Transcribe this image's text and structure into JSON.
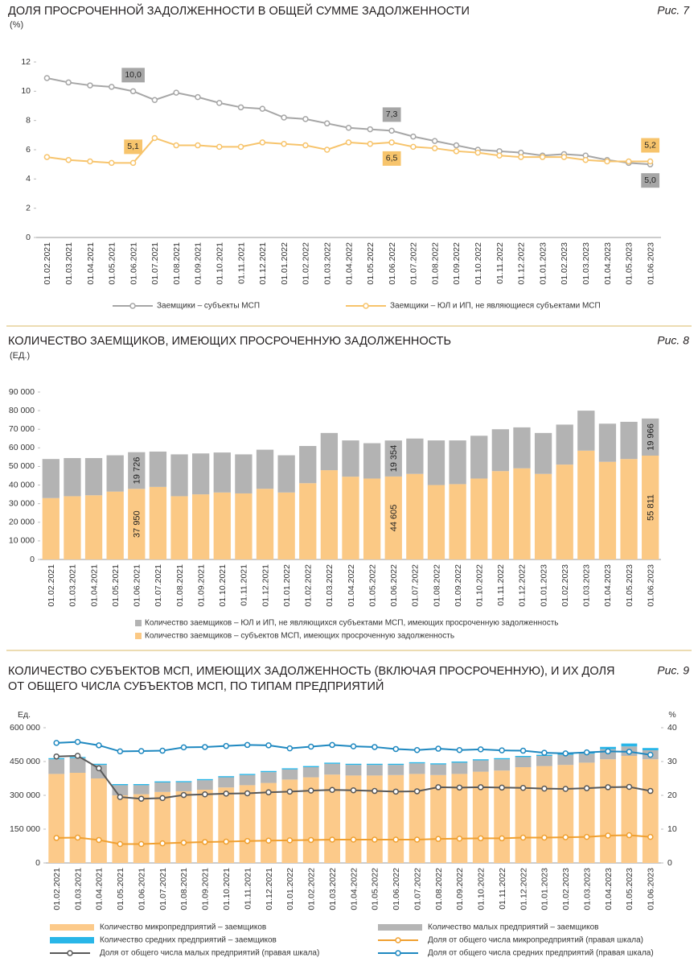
{
  "chart_data": [
    {
      "type": "line",
      "title": "ДОЛЯ ПРОСРОЧЕННОЙ ЗАДОЛЖЕННОСТИ В ОБЩЕЙ СУММЕ ЗАДОЛЖЕННОСТИ",
      "unit": "(%)",
      "figure_label": "Рис. 7",
      "categories": [
        "01.02.2021",
        "01.03.2021",
        "01.04.2021",
        "01.05.2021",
        "01.06.2021",
        "01.07.2021",
        "01.08.2021",
        "01.09.2021",
        "01.10.2021",
        "01.11.2021",
        "01.12.2021",
        "01.01.2022",
        "01.02.2022",
        "01.03.2022",
        "01.04.2022",
        "01.05.2022",
        "01.06.2022",
        "01.07.2022",
        "01.08.2022",
        "01.09.2022",
        "01.10.2022",
        "01.11.2022",
        "01.12.2022",
        "01.01.2023",
        "01.02.2023",
        "01.03.2023",
        "01.04.2023",
        "01.05.2023",
        "01.06.2023"
      ],
      "ylim": [
        0,
        12
      ],
      "yticks": [
        0,
        2,
        4,
        6,
        8,
        10,
        12
      ],
      "grid": false,
      "legend": "bottom",
      "series": [
        {
          "name": "Заемщики – субъекты МСП",
          "color": "#a6a6a6",
          "values": [
            10.9,
            10.6,
            10.4,
            10.3,
            10.0,
            9.4,
            9.9,
            9.6,
            9.2,
            8.9,
            8.8,
            8.2,
            8.1,
            7.8,
            7.5,
            7.4,
            7.3,
            6.9,
            6.6,
            6.3,
            6.0,
            5.9,
            5.8,
            5.6,
            5.7,
            5.6,
            5.3,
            5.1,
            5.0
          ],
          "value_labels": [
            null,
            null,
            null,
            null,
            "10,0",
            null,
            null,
            null,
            null,
            null,
            null,
            null,
            null,
            null,
            null,
            null,
            "7,3",
            null,
            null,
            null,
            null,
            null,
            null,
            null,
            null,
            null,
            null,
            null,
            "5,0"
          ]
        },
        {
          "name": "Заемщики – ЮЛ и ИП, не являющиеся субъектами МСП",
          "color": "#f7c46c",
          "values": [
            5.5,
            5.3,
            5.2,
            5.1,
            5.1,
            6.8,
            6.3,
            6.3,
            6.2,
            6.2,
            6.5,
            6.4,
            6.3,
            6.0,
            6.5,
            6.4,
            6.5,
            6.2,
            6.1,
            5.9,
            5.8,
            5.6,
            5.5,
            5.5,
            5.5,
            5.3,
            5.2,
            5.2,
            5.2
          ],
          "value_labels": [
            null,
            null,
            null,
            null,
            "5,1",
            null,
            null,
            null,
            null,
            null,
            null,
            null,
            null,
            null,
            null,
            null,
            "6,5",
            null,
            null,
            null,
            null,
            null,
            null,
            null,
            null,
            null,
            null,
            null,
            "5,2"
          ]
        }
      ]
    },
    {
      "type": "bar",
      "stacked": true,
      "title": "КОЛИЧЕСТВО ЗАЕМЩИКОВ, ИМЕЮЩИХ ПРОСРОЧЕННУЮ ЗАДОЛЖЕННОСТЬ",
      "unit": "(ЕД.)",
      "figure_label": "Рис. 8",
      "categories": [
        "01.02.2021",
        "01.03.2021",
        "01.04.2021",
        "01.05.2021",
        "01.06.2021",
        "01.07.2021",
        "01.08.2021",
        "01.09.2021",
        "01.10.2021",
        "01.11.2021",
        "01.12.2021",
        "01.01.2022",
        "01.02.2022",
        "01.03.2022",
        "01.04.2022",
        "01.05.2022",
        "01.06.2022",
        "01.07.2022",
        "01.08.2022",
        "01.09.2022",
        "01.10.2022",
        "01.11.2022",
        "01.12.2022",
        "01.01.2023",
        "01.02.2023",
        "01.03.2023",
        "01.04.2023",
        "01.05.2023",
        "01.06.2023"
      ],
      "ylim": [
        0,
        90000
      ],
      "yticks": [
        0,
        {
          "value": 10000,
          "label": "10 000"
        },
        {
          "value": 20000,
          "label": "20 000"
        },
        {
          "value": 30000,
          "label": "30 000"
        },
        {
          "value": 40000,
          "label": "40 000"
        },
        {
          "value": 50000,
          "label": "50 000"
        },
        {
          "value": 60000,
          "label": "60 000"
        },
        {
          "value": 70000,
          "label": "70 000"
        },
        {
          "value": 80000,
          "label": "80 000"
        },
        {
          "value": 90000,
          "label": "90 000"
        }
      ],
      "grid": false,
      "legend": "bottom",
      "series": [
        {
          "name": "Количество заемщиков – ЮЛ и ИП, не являющихся субъектами МСП, имеющих просроченную задолженность",
          "color": "#b3b3b3",
          "values": [
            21000,
            20500,
            20000,
            19500,
            19726,
            19000,
            22500,
            22000,
            21500,
            21000,
            21000,
            20000,
            20000,
            20000,
            19500,
            19000,
            19354,
            19000,
            24000,
            23500,
            23000,
            22500,
            22000,
            22000,
            21500,
            21500,
            20500,
            20000,
            19966
          ],
          "value_labels": [
            null,
            null,
            null,
            null,
            "19 726",
            null,
            null,
            null,
            null,
            null,
            null,
            null,
            null,
            null,
            null,
            null,
            "19 354",
            null,
            null,
            null,
            null,
            null,
            null,
            null,
            null,
            null,
            null,
            null,
            "19 966"
          ]
        },
        {
          "name": "Количество заемщиков – субъектов МСП, имеющих просроченную задолженность",
          "color": "#fbc985",
          "values": [
            33000,
            34000,
            34500,
            36500,
            37950,
            39000,
            34000,
            35000,
            36000,
            35500,
            38000,
            36000,
            41000,
            48000,
            44500,
            43500,
            44605,
            46000,
            40000,
            40500,
            43500,
            47500,
            49000,
            46000,
            51000,
            58500,
            52500,
            54000,
            55811
          ],
          "value_labels": [
            null,
            null,
            null,
            null,
            "37 950",
            null,
            null,
            null,
            null,
            null,
            null,
            null,
            null,
            null,
            null,
            null,
            "44 605",
            null,
            null,
            null,
            null,
            null,
            null,
            null,
            null,
            null,
            null,
            null,
            "55 811"
          ]
        }
      ]
    },
    {
      "type": "combo",
      "stacked": true,
      "title": [
        "КОЛИЧЕСТВО СУБЪЕКТОВ МСП, ИМЕЮЩИХ ЗАДОЛЖЕННОСТЬ (ВКЛЮЧАЯ ПРОСРОЧЕННУЮ), И ИХ ДОЛЯ",
        "ОТ ОБЩЕГО ЧИСЛА СУБЪЕКТОВ МСП, ПО ТИПАМ ПРЕДПРИЯТИЙ"
      ],
      "figure_label": "Рис. 9",
      "y_label": "Ед.",
      "y2_label": "%",
      "categories": [
        "01.02.2021",
        "01.03.2021",
        "01.04.2021",
        "01.05.2021",
        "01.06.2021",
        "01.07.2021",
        "01.08.2021",
        "01.09.2021",
        "01.10.2021",
        "01.11.2021",
        "01.12.2021",
        "01.01.2022",
        "01.02.2022",
        "01.03.2022",
        "01.04.2022",
        "01.05.2022",
        "01.06.2022",
        "01.07.2022",
        "01.08.2022",
        "01.09.2022",
        "01.10.2022",
        "01.11.2022",
        "01.12.2022",
        "01.01.2023",
        "01.02.2023",
        "01.03.2023",
        "01.04.2023",
        "01.05.2023",
        "01.06.2023"
      ],
      "ylim": [
        0,
        600000
      ],
      "yticks": [
        0,
        {
          "value": 150000,
          "label": "150 000"
        },
        {
          "value": 300000,
          "label": "300 000"
        },
        {
          "value": 450000,
          "label": "450 000"
        },
        {
          "value": 600000,
          "label": "600 000"
        }
      ],
      "y2lim": [
        0,
        40
      ],
      "y2ticks": [
        0,
        10,
        20,
        30,
        40
      ],
      "grid": false,
      "legend": "bottom",
      "series": [
        {
          "name": "Количество микропредприятий – заемщиков",
          "type": "bar",
          "color": "#fcca8a",
          "values": [
            395000,
            400000,
            375000,
            300000,
            305000,
            315000,
            318000,
            325000,
            335000,
            345000,
            355000,
            370000,
            380000,
            392000,
            388000,
            388000,
            390000,
            395000,
            390000,
            395000,
            405000,
            410000,
            425000,
            430000,
            435000,
            445000,
            460000,
            475000,
            460000
          ]
        },
        {
          "name": "Количество малых предприятий – заемщиков",
          "type": "bar",
          "color": "#b5b5b5",
          "values": [
            65000,
            65000,
            60000,
            45000,
            40000,
            42000,
            40000,
            42000,
            45000,
            45000,
            48000,
            45000,
            45000,
            48000,
            47000,
            47000,
            45000,
            47000,
            47000,
            50000,
            50000,
            50000,
            45000,
            45000,
            45000,
            40000,
            45000,
            42000,
            40000
          ]
        },
        {
          "name": "Количество средних предприятий – заемщиков",
          "type": "bar",
          "color": "#29b6e8",
          "values": [
            5000,
            5000,
            5000,
            5000,
            5000,
            5000,
            5000,
            5000,
            5000,
            5000,
            5000,
            5000,
            5000,
            5000,
            5000,
            5000,
            5000,
            5000,
            5000,
            5000,
            5000,
            5000,
            5000,
            5000,
            5000,
            5000,
            10000,
            13000,
            10000
          ]
        },
        {
          "name": "Доля от общего числа микропредприятий (правая шкала)",
          "type": "line",
          "axis": "y2",
          "color": "#f0a030",
          "values": [
            7.4,
            7.5,
            6.8,
            5.6,
            5.6,
            5.8,
            6.0,
            6.2,
            6.3,
            6.5,
            6.6,
            6.7,
            6.8,
            6.9,
            6.9,
            6.9,
            6.9,
            6.9,
            7.1,
            7.2,
            7.3,
            7.3,
            7.5,
            7.5,
            7.6,
            7.7,
            8.1,
            8.2,
            7.7
          ]
        },
        {
          "name": "Доля от общего числа малых предприятий  (правая шкала)",
          "type": "line",
          "axis": "y2",
          "color": "#595959",
          "values": [
            31.5,
            31.7,
            28.0,
            19.5,
            19.0,
            19.2,
            20.1,
            20.3,
            20.5,
            20.6,
            20.9,
            21.1,
            21.4,
            21.6,
            21.5,
            21.3,
            21.1,
            21.2,
            22.4,
            22.3,
            22.4,
            22.3,
            22.2,
            22.0,
            21.9,
            22.1,
            22.4,
            22.5,
            21.3
          ]
        },
        {
          "name": "Доля от общего числа средних предприятий  (правая шкала)",
          "type": "line",
          "axis": "y2",
          "color": "#1e88c0",
          "values": [
            35.5,
            35.8,
            34.8,
            33.0,
            33.1,
            33.2,
            34.2,
            34.3,
            34.6,
            34.9,
            34.8,
            33.9,
            34.4,
            34.9,
            34.5,
            34.3,
            33.7,
            33.4,
            33.8,
            33.4,
            33.6,
            33.3,
            33.2,
            32.6,
            32.4,
            32.7,
            33.0,
            32.9,
            32.0
          ]
        }
      ]
    }
  ]
}
